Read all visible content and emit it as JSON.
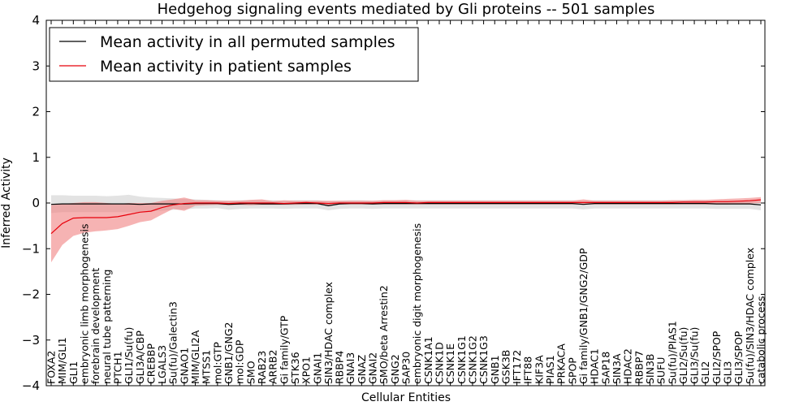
{
  "chart_data": {
    "type": "line",
    "title": "Hedgehog signaling events mediated by Gli proteins -- 501 samples",
    "xlabel": "Cellular Entities",
    "ylabel": "Inferred Activity",
    "ylim": [
      -4,
      4
    ],
    "yticks": [
      -4,
      -3,
      -2,
      -1,
      0,
      1,
      2,
      3,
      4
    ],
    "ytick_labels": [
      "−4",
      "−3",
      "−2",
      "−1",
      "0",
      "1",
      "2",
      "3",
      "4"
    ],
    "legend_position": "top-left",
    "categories": [
      "FOXA2",
      "MIM/GLI1",
      "GLI1",
      "embryonic limb morphogenesis",
      "forebrain development",
      "neural tube patterning",
      "PTCH1",
      "GLI1/Su(fu)",
      "GLI3A/CBP",
      "CREBBP",
      "LGALS3",
      "Su(fu)/Galectin3",
      "GNAO1",
      "MIM/GLI2A",
      "MTSS1",
      "mol:GTP",
      "GNB1/GNG2",
      "mol:GDP",
      "SMO",
      "RAB23",
      "ARRB2",
      "Gi family/GTP",
      "STK36",
      "XPO1",
      "GNAI1",
      "SIN3/HDAC complex",
      "RBBP4",
      "GNAI3",
      "GNAZ",
      "GNAI2",
      "SMO/beta Arrestin2",
      "GNG2",
      "SAP30",
      "embryonic digit morphogenesis",
      "CSNK1A1",
      "CSNK1D",
      "CSNK1E",
      "CSNK1G1",
      "CSNK1G2",
      "CSNK1G3",
      "GNB1",
      "GSK3B",
      "IFT172",
      "IFT88",
      "KIF3A",
      "PIAS1",
      "PRKACA",
      "SPOP",
      "Gi family/GNB1/GNG2/GDP",
      "HDAC1",
      "SAP18",
      "SIN3A",
      "HDAC2",
      "RBBP7",
      "SIN3B",
      "SUFU",
      "Su(fu)/PIAS1",
      "GLI2/Su(fu)",
      "GLI3/Su(fu)",
      "GLI2",
      "GLI2/SPOP",
      "GLI3",
      "GLI3/SPOP",
      "Su(fu)/SIN3/HDAC complex",
      "catabolic process"
    ],
    "series": [
      {
        "name": "Mean activity in all permuted samples",
        "color": "#000000",
        "band_color": "#c8c8c8",
        "values": [
          -0.03,
          -0.02,
          -0.02,
          -0.02,
          -0.02,
          -0.02,
          -0.02,
          -0.02,
          -0.03,
          -0.02,
          -0.02,
          -0.02,
          -0.02,
          -0.01,
          -0.01,
          -0.01,
          -0.03,
          -0.02,
          -0.01,
          -0.02,
          -0.02,
          -0.02,
          -0.01,
          -0.01,
          -0.01,
          -0.06,
          -0.02,
          -0.01,
          -0.01,
          -0.02,
          -0.01,
          -0.01,
          -0.01,
          -0.01,
          -0.01,
          -0.01,
          -0.01,
          -0.01,
          -0.01,
          -0.01,
          -0.01,
          -0.01,
          -0.01,
          -0.01,
          -0.01,
          -0.01,
          -0.01,
          -0.01,
          -0.03,
          -0.01,
          -0.01,
          -0.01,
          -0.01,
          -0.01,
          -0.01,
          -0.01,
          -0.01,
          -0.01,
          -0.01,
          -0.01,
          -0.02,
          -0.02,
          -0.02,
          -0.02,
          -0.04
        ],
        "lower": [
          -0.22,
          -0.2,
          -0.2,
          -0.2,
          -0.2,
          -0.2,
          -0.2,
          -0.2,
          -0.2,
          -0.18,
          -0.17,
          -0.15,
          -0.14,
          -0.12,
          -0.12,
          -0.11,
          -0.15,
          -0.13,
          -0.12,
          -0.12,
          -0.12,
          -0.13,
          -0.12,
          -0.12,
          -0.12,
          -0.16,
          -0.13,
          -0.12,
          -0.12,
          -0.13,
          -0.12,
          -0.12,
          -0.12,
          -0.12,
          -0.12,
          -0.12,
          -0.12,
          -0.12,
          -0.12,
          -0.12,
          -0.12,
          -0.12,
          -0.12,
          -0.12,
          -0.12,
          -0.12,
          -0.12,
          -0.12,
          -0.14,
          -0.12,
          -0.12,
          -0.12,
          -0.12,
          -0.12,
          -0.12,
          -0.12,
          -0.12,
          -0.12,
          -0.12,
          -0.12,
          -0.13,
          -0.13,
          -0.13,
          -0.13,
          -0.16
        ],
        "upper": [
          0.17,
          0.17,
          0.16,
          0.16,
          0.16,
          0.15,
          0.16,
          0.18,
          0.14,
          0.12,
          0.11,
          0.1,
          0.09,
          0.08,
          0.07,
          0.06,
          0.05,
          0.06,
          0.06,
          0.06,
          0.06,
          0.05,
          0.06,
          0.06,
          0.06,
          0.04,
          0.05,
          0.06,
          0.06,
          0.05,
          0.06,
          0.06,
          0.06,
          0.06,
          0.06,
          0.06,
          0.06,
          0.06,
          0.06,
          0.06,
          0.06,
          0.06,
          0.06,
          0.06,
          0.06,
          0.06,
          0.06,
          0.06,
          0.05,
          0.06,
          0.06,
          0.06,
          0.06,
          0.06,
          0.06,
          0.06,
          0.06,
          0.06,
          0.06,
          0.06,
          0.05,
          0.05,
          0.05,
          0.05,
          0.03
        ]
      },
      {
        "name": "Mean activity in patient samples",
        "color": "#e8000b",
        "band_color": "#f08080",
        "values": [
          -0.67,
          -0.45,
          -0.33,
          -0.32,
          -0.32,
          -0.32,
          -0.3,
          -0.25,
          -0.2,
          -0.18,
          -0.1,
          -0.04,
          -0.01,
          0.0,
          0.0,
          0.0,
          -0.01,
          0.0,
          0.0,
          0.0,
          0.0,
          -0.01,
          0.0,
          0.01,
          0.0,
          -0.01,
          0.0,
          0.0,
          0.0,
          0.0,
          0.01,
          0.01,
          0.01,
          0.0,
          0.01,
          0.01,
          0.01,
          0.01,
          0.01,
          0.01,
          0.01,
          0.01,
          0.01,
          0.01,
          0.01,
          0.01,
          0.01,
          0.01,
          0.01,
          0.01,
          0.01,
          0.01,
          0.01,
          0.01,
          0.01,
          0.01,
          0.01,
          0.02,
          0.02,
          0.02,
          0.03,
          0.03,
          0.04,
          0.05,
          0.07
        ],
        "lower": [
          -1.3,
          -0.92,
          -0.72,
          -0.65,
          -0.62,
          -0.6,
          -0.57,
          -0.5,
          -0.42,
          -0.38,
          -0.25,
          -0.13,
          -0.17,
          -0.06,
          -0.05,
          -0.04,
          -0.05,
          -0.04,
          -0.05,
          -0.04,
          -0.04,
          -0.04,
          -0.04,
          -0.03,
          -0.03,
          -0.05,
          -0.03,
          -0.03,
          -0.03,
          -0.03,
          -0.03,
          -0.03,
          -0.03,
          -0.03,
          -0.03,
          -0.03,
          -0.03,
          -0.03,
          -0.03,
          -0.03,
          -0.03,
          -0.03,
          -0.03,
          -0.03,
          -0.03,
          -0.03,
          -0.03,
          -0.03,
          -0.03,
          -0.03,
          -0.03,
          -0.03,
          -0.03,
          -0.03,
          -0.03,
          -0.03,
          -0.03,
          -0.03,
          -0.03,
          -0.03,
          -0.03,
          -0.03,
          -0.02,
          -0.01,
          0.0
        ],
        "upper": [
          -0.05,
          -0.02,
          0.0,
          0.02,
          0.02,
          0.0,
          -0.02,
          0.0,
          0.0,
          0.0,
          0.05,
          0.08,
          0.12,
          0.06,
          0.06,
          0.05,
          0.05,
          0.05,
          0.07,
          0.08,
          0.04,
          0.06,
          0.05,
          0.05,
          0.05,
          0.05,
          0.05,
          0.05,
          0.05,
          0.05,
          0.06,
          0.06,
          0.07,
          0.05,
          0.05,
          0.05,
          0.05,
          0.05,
          0.05,
          0.05,
          0.05,
          0.05,
          0.05,
          0.05,
          0.05,
          0.05,
          0.05,
          0.05,
          0.08,
          0.05,
          0.05,
          0.05,
          0.05,
          0.05,
          0.05,
          0.05,
          0.06,
          0.06,
          0.07,
          0.07,
          0.08,
          0.09,
          0.1,
          0.11,
          0.13
        ]
      }
    ]
  }
}
